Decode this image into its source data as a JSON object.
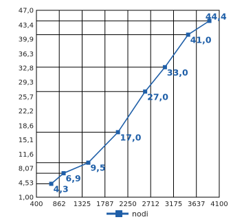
{
  "chart_data": {
    "type": "line",
    "x_ticks": [
      "400",
      "862",
      "1325",
      "1787",
      "2250",
      "2712",
      "3175",
      "3637",
      "4100"
    ],
    "y_ticks": [
      "1,00",
      "4,53",
      "8,07",
      "11,6",
      "15,1",
      "18,6",
      "22,2",
      "25,7",
      "29,3",
      "32,8",
      "36,3",
      "39,9",
      "43,4",
      "47,0"
    ],
    "xlim": [
      400,
      4100
    ],
    "ylim": [
      1.0,
      47.0
    ],
    "grid": "vertical gridlines at every x tick; horizontal reference line from the y-axis to each data point",
    "legend_position": "bottom-center",
    "series": [
      {
        "name": "nodi",
        "x": [
          700,
          950,
          1450,
          2050,
          2600,
          3000,
          3470,
          3900
        ],
        "y": [
          4.3,
          6.9,
          9.5,
          17.0,
          27.0,
          33.0,
          41.0,
          44.4
        ],
        "labels": [
          "4,3",
          "6,9",
          "9,5",
          "17,0",
          "27,0",
          "33,0",
          "41,0",
          "44,4"
        ]
      }
    ]
  },
  "colors": {
    "series": "#1f5fa8",
    "grid": "#000000",
    "text": "#222222"
  }
}
